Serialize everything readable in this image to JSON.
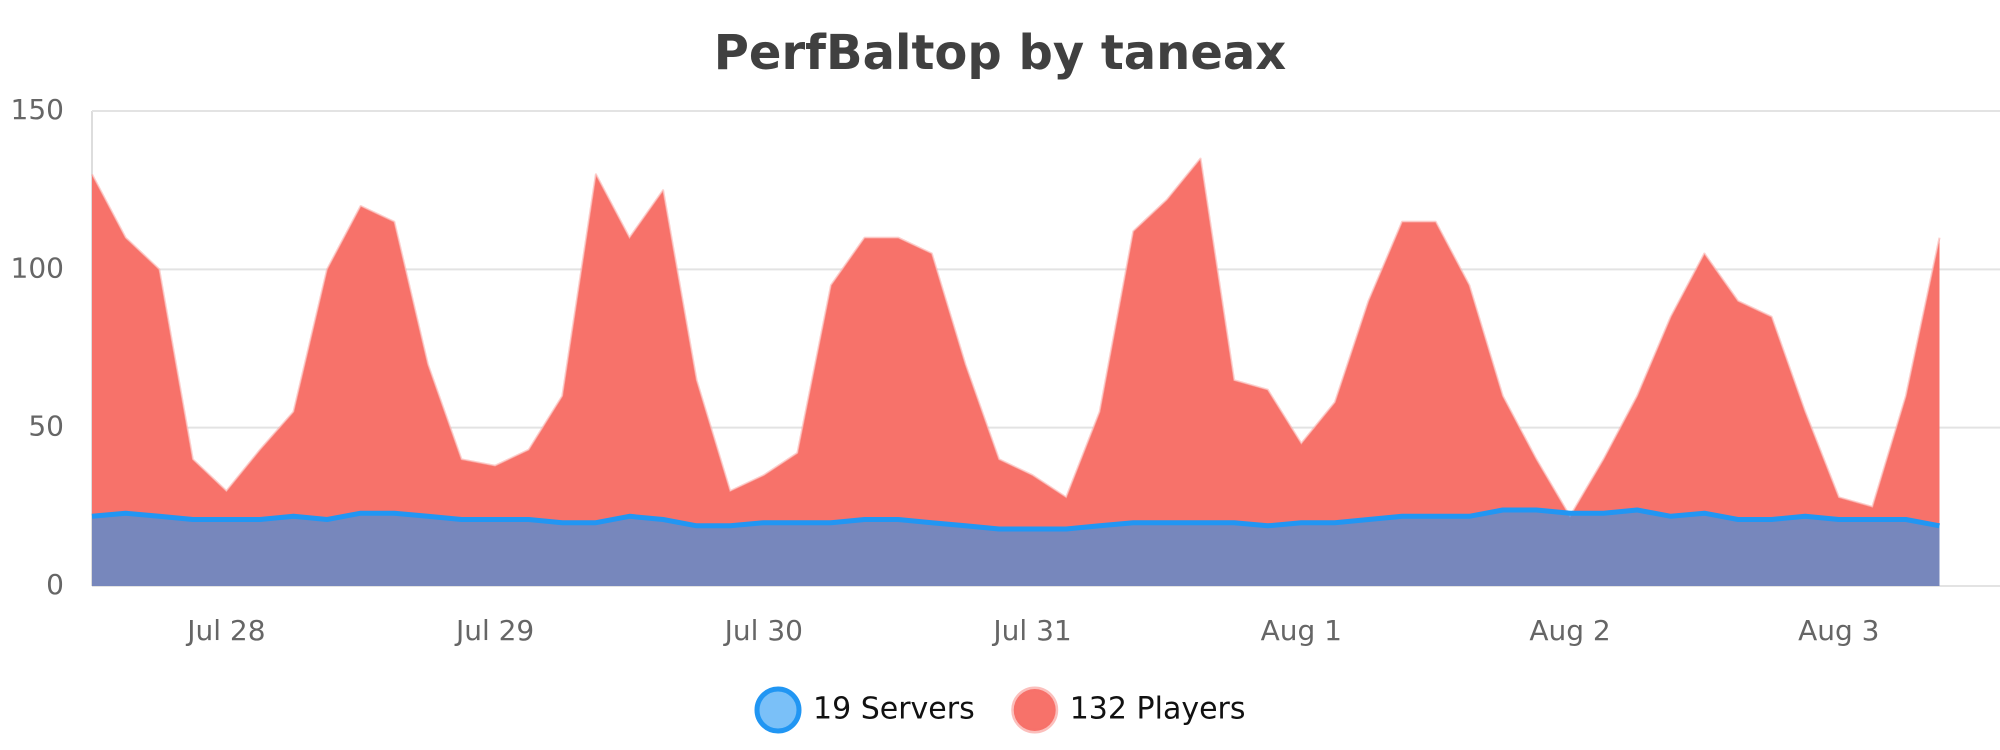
{
  "chart_data": {
    "type": "area",
    "title": "PerfBaltop by taneax",
    "categories": [
      null,
      null,
      null,
      null,
      "Jul 28",
      null,
      null,
      null,
      null,
      null,
      null,
      null,
      "Jul 29",
      null,
      null,
      null,
      null,
      null,
      null,
      null,
      "Jul 30",
      null,
      null,
      null,
      null,
      null,
      null,
      null,
      "Jul 31",
      null,
      null,
      null,
      null,
      null,
      null,
      null,
      "Aug 1",
      null,
      null,
      null,
      null,
      null,
      null,
      null,
      "Aug 2",
      null,
      null,
      null,
      null,
      null,
      null,
      null,
      "Aug 3",
      null,
      null,
      null
    ],
    "series": [
      {
        "name": "132 Players",
        "color": "#f7726a",
        "values": [
          130,
          110,
          100,
          40,
          30,
          43,
          55,
          100,
          120,
          115,
          70,
          40,
          38,
          43,
          60,
          130,
          110,
          125,
          65,
          30,
          35,
          42,
          95,
          110,
          110,
          105,
          70,
          40,
          35,
          28,
          55,
          112,
          122,
          135,
          65,
          62,
          45,
          58,
          90,
          115,
          115,
          95,
          60,
          40,
          22,
          40,
          60,
          85,
          105,
          90,
          85,
          55,
          28,
          25,
          60,
          110
        ]
      },
      {
        "name": "19 Servers",
        "color": "#2196f3",
        "values": [
          22,
          23,
          22,
          21,
          21,
          21,
          22,
          21,
          23,
          23,
          22,
          21,
          21,
          21,
          20,
          20,
          22,
          21,
          19,
          19,
          20,
          20,
          20,
          21,
          21,
          20,
          19,
          18,
          18,
          18,
          19,
          20,
          20,
          20,
          20,
          19,
          20,
          20,
          21,
          22,
          22,
          22,
          24,
          24,
          23,
          23,
          24,
          22,
          23,
          21,
          21,
          22,
          21,
          21,
          21,
          19
        ]
      }
    ],
    "ylim": [
      0,
      150
    ],
    "yticks": [
      0,
      50,
      100,
      150
    ],
    "grid": true
  }
}
